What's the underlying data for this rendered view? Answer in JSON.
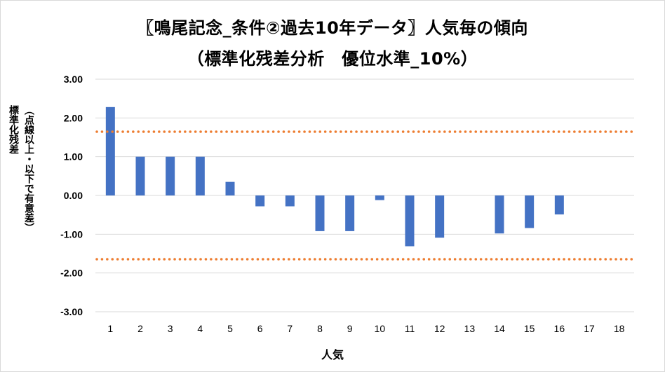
{
  "chart_data": {
    "type": "bar",
    "title_line1": "〖鳴尾記念_条件②過去10年データ〗人気毎の傾向",
    "title_line2": "（標準化残差分析　優位水準_10%）",
    "xlabel": "人気",
    "ylabel_line1": "標準化残差",
    "ylabel_line2": "（点線以上・以下で有意差）",
    "categories": [
      "1",
      "2",
      "3",
      "4",
      "5",
      "6",
      "7",
      "8",
      "9",
      "10",
      "11",
      "12",
      "13",
      "14",
      "15",
      "16",
      "17",
      "18"
    ],
    "values": [
      2.28,
      1.0,
      1.0,
      1.0,
      0.35,
      -0.28,
      -0.28,
      -0.92,
      -0.92,
      -0.12,
      -1.31,
      -1.09,
      0,
      -0.98,
      -0.84,
      -0.49,
      0,
      0
    ],
    "ylim": [
      -3,
      3
    ],
    "yticks": [
      "3.00",
      "2.00",
      "1.00",
      "0.00",
      "-1.00",
      "-2.00",
      "-3.00"
    ],
    "thresholds": [
      1.645,
      -1.645
    ],
    "bar_color": "#4472c4",
    "threshold_color": "#ed7d31",
    "grid": true,
    "legend": "none"
  }
}
